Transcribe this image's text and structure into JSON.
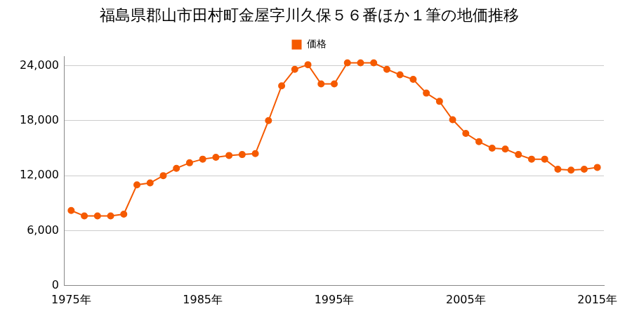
{
  "chart_data": {
    "type": "line",
    "title": "福島県郡山市田村町金屋字川久保５６番ほか１筆の地価推移",
    "categories": [
      "1975年",
      null,
      null,
      null,
      null,
      null,
      null,
      null,
      null,
      null,
      "1985年",
      null,
      null,
      null,
      null,
      null,
      null,
      null,
      null,
      null,
      "1995年",
      null,
      null,
      null,
      null,
      null,
      null,
      null,
      null,
      null,
      "2005年",
      null,
      null,
      null,
      null,
      null,
      null,
      null,
      null,
      null,
      "2015年"
    ],
    "series": [
      {
        "name": "価格",
        "color": "#f55a00",
        "marker": "circle",
        "values": [
          8200,
          7600,
          7600,
          7600,
          7800,
          11000,
          11200,
          12000,
          12800,
          13400,
          13800,
          14000,
          14200,
          14300,
          14400,
          18000,
          21800,
          23600,
          24100,
          22000,
          22000,
          24300,
          24300,
          24300,
          23600,
          23000,
          22500,
          21000,
          20100,
          18100,
          16600,
          15700,
          15000,
          14900,
          14300,
          13800,
          13800,
          12700,
          12600,
          12700,
          12900
        ]
      }
    ],
    "ylim": [
      0,
      25000
    ],
    "yticks": [
      0,
      {
        "value": 6000,
        "label": "6,000"
      },
      {
        "value": 12000,
        "label": "12,000"
      },
      {
        "value": 18000,
        "label": "18,000"
      },
      {
        "value": 24000,
        "label": "24,000"
      }
    ],
    "grid": true,
    "legend": "top"
  }
}
